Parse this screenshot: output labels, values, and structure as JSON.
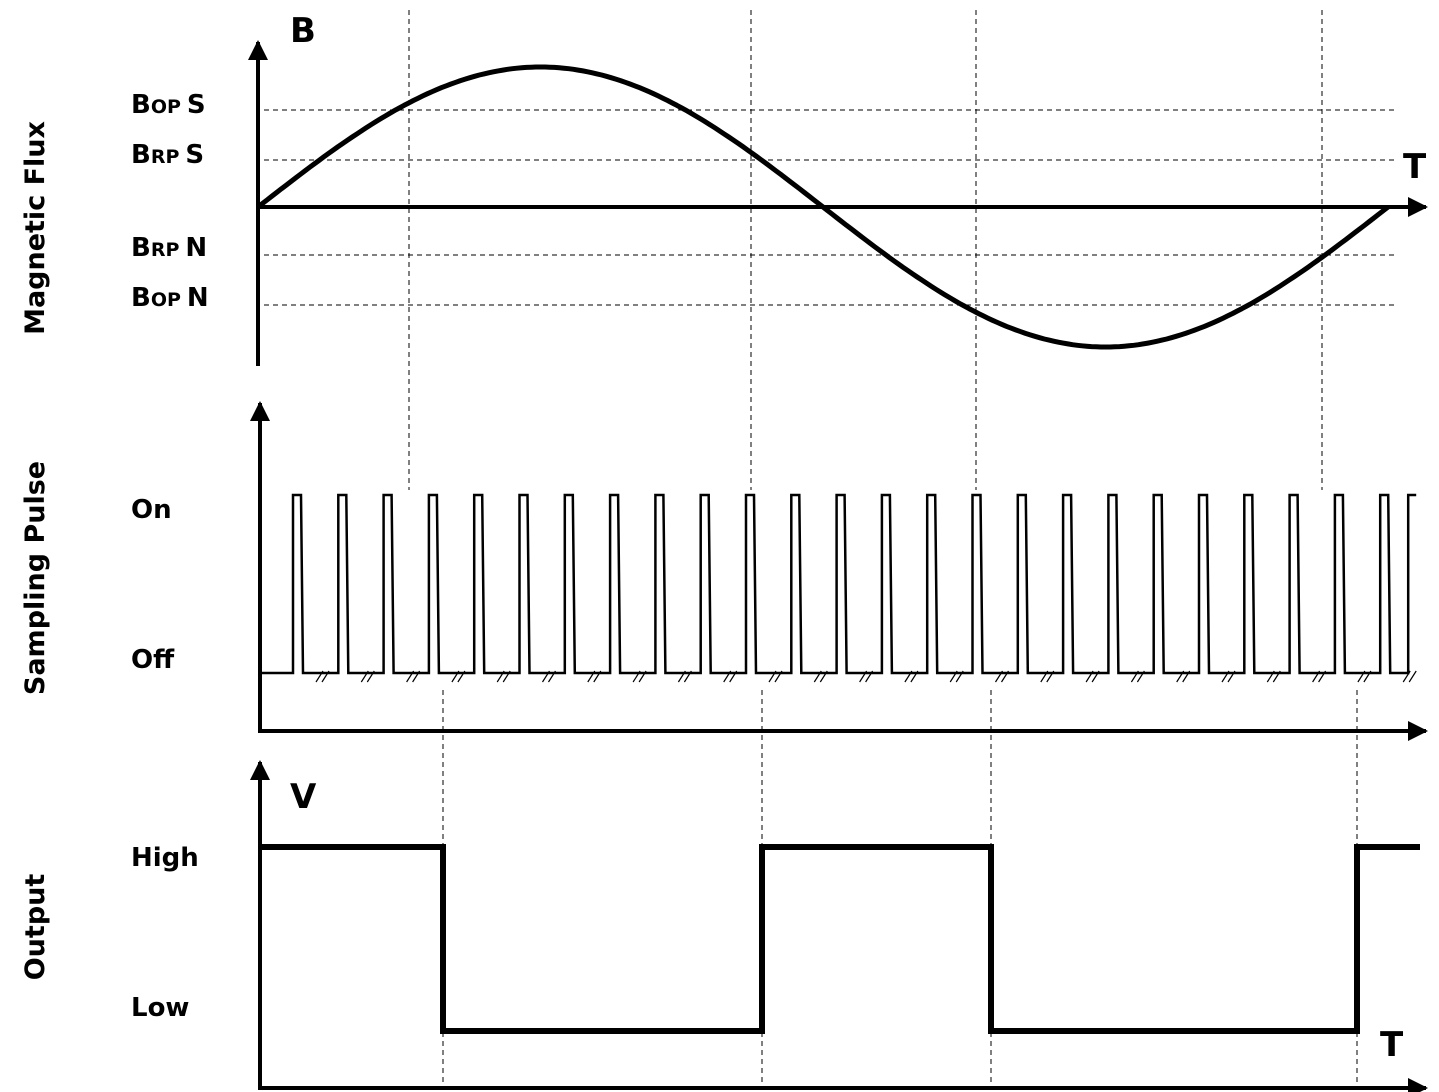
{
  "panels": {
    "flux": {
      "side_label": "Magnetic Flux",
      "y_axis_letter": "B",
      "t_label": "T",
      "levels": [
        {
          "main": "B",
          "sub": "OP",
          "pole": "S"
        },
        {
          "main": "B",
          "sub": "RP",
          "pole": "S"
        },
        {
          "main": "B",
          "sub": "RP",
          "pole": "N"
        },
        {
          "main": "B",
          "sub": "OP",
          "pole": "N"
        }
      ]
    },
    "sampling": {
      "side_label": "Sampling Pulse",
      "on_label": "On",
      "off_label": "Off",
      "pulse_count": 25
    },
    "output": {
      "side_label": "Output",
      "y_axis_letter": "V",
      "high_label": "High",
      "low_label": "Low",
      "t_label": "T",
      "states_sequence": [
        "High",
        "Low",
        "High",
        "Low",
        "High"
      ]
    }
  }
}
